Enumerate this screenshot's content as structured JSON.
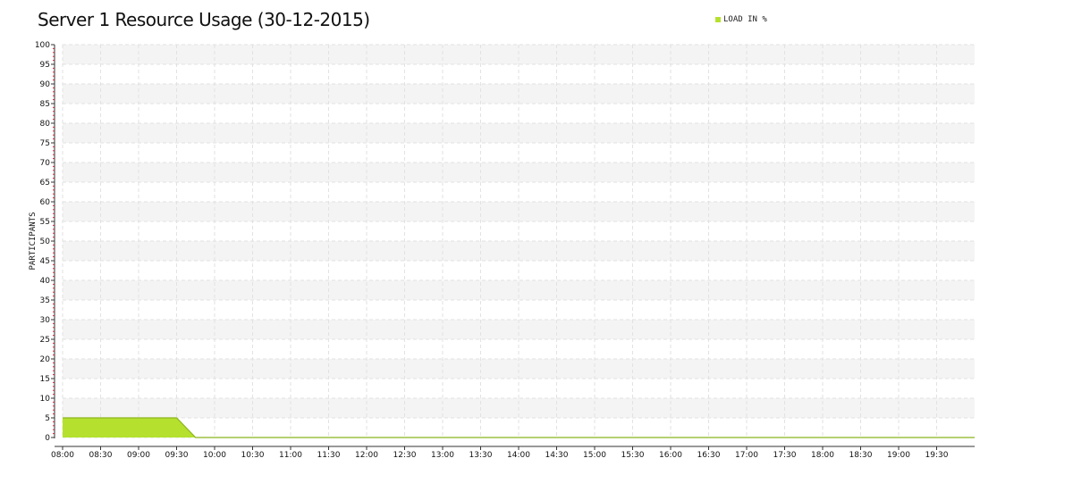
{
  "chart_data": {
    "type": "area",
    "title": "Server 1 Resource Usage (30-12-2015)",
    "ylabel": "PARTICIPANTS",
    "xlabel": "",
    "ylim": [
      0,
      100
    ],
    "y_ticks": [
      0,
      5,
      10,
      15,
      20,
      25,
      30,
      35,
      40,
      45,
      50,
      55,
      60,
      65,
      70,
      75,
      80,
      85,
      90,
      95,
      100
    ],
    "x_ticks": [
      "08:00",
      "08:30",
      "09:00",
      "09:30",
      "10:00",
      "10:30",
      "11:00",
      "11:30",
      "12:00",
      "12:30",
      "13:00",
      "13:30",
      "14:00",
      "14:30",
      "15:00",
      "15:30",
      "16:00",
      "16:30",
      "17:00",
      "17:30",
      "18:00",
      "18:30",
      "19:00",
      "19:30"
    ],
    "xlim": [
      "08:00",
      "20:00"
    ],
    "grid": true,
    "legend_position": "top-right",
    "series": [
      {
        "name": "LOAD IN %",
        "color": "#b5e12e",
        "line_color": "#8cb51e",
        "points": [
          {
            "x": "08:00",
            "y": 5
          },
          {
            "x": "09:30",
            "y": 5
          },
          {
            "x": "09:45",
            "y": 0
          },
          {
            "x": "20:00",
            "y": 0
          }
        ]
      }
    ]
  }
}
